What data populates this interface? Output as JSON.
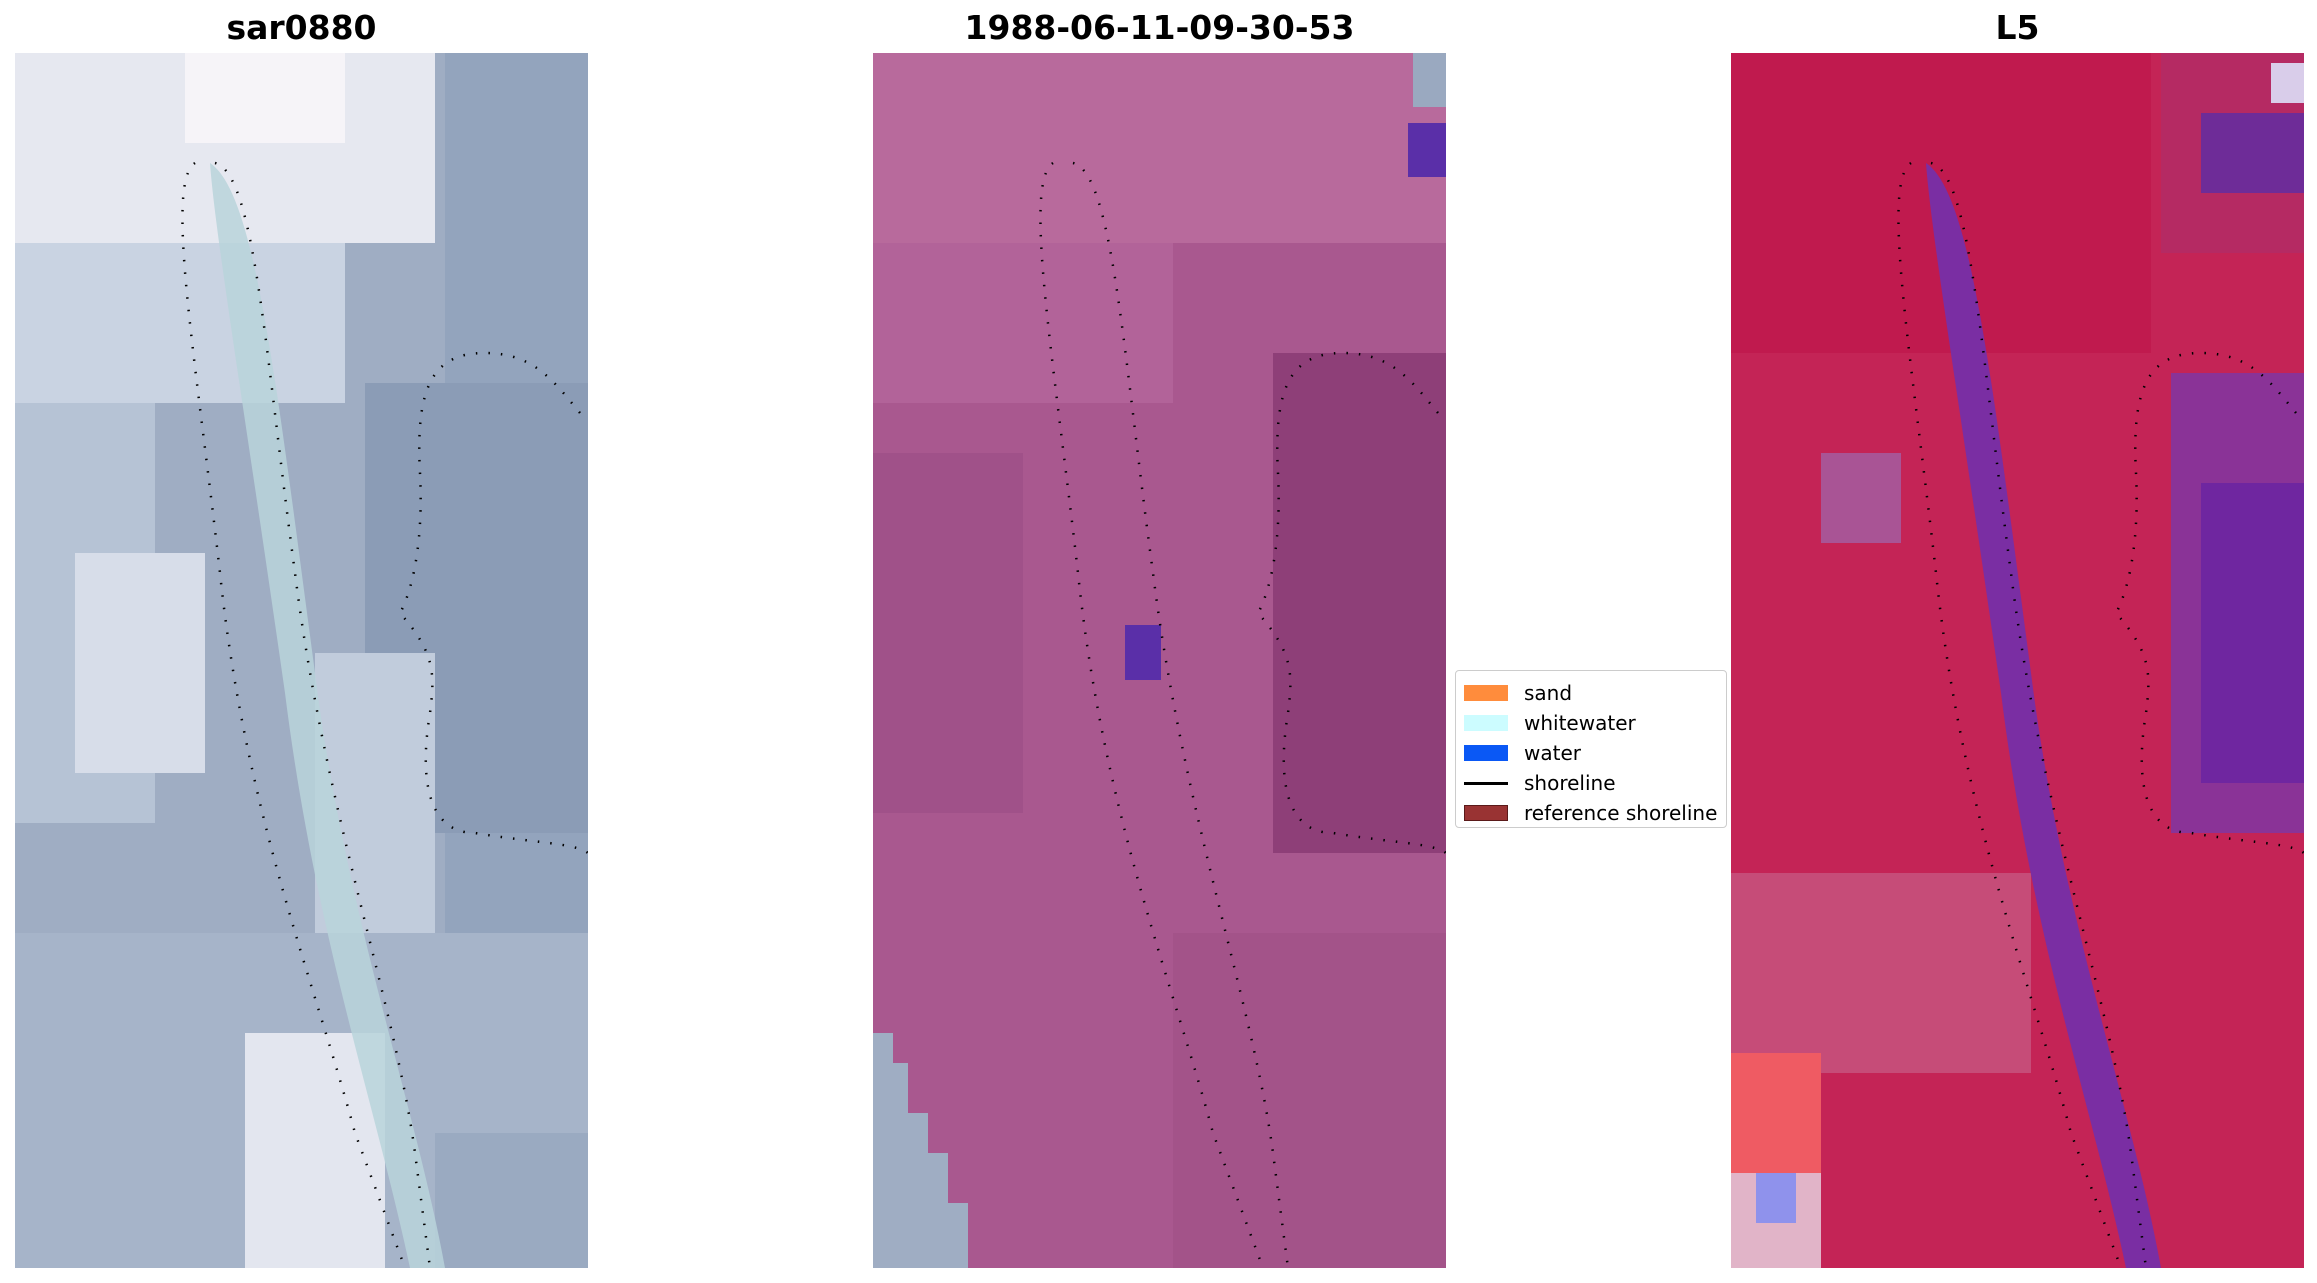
{
  "panels": [
    {
      "title": "sar0880"
    },
    {
      "title": "1988-06-11-09-30-53"
    },
    {
      "title": "L5"
    }
  ],
  "legend": {
    "items": [
      {
        "label": "sand",
        "color": "#ff8c3c"
      },
      {
        "label": "whitewater",
        "color": "#ccfcff"
      },
      {
        "label": "water",
        "color": "#0a58f5"
      },
      {
        "label": "shoreline",
        "color": "#000000"
      },
      {
        "label": "reference shoreline",
        "color": "#993333"
      }
    ]
  },
  "colors": {
    "rgb_base": "#9aa9c0",
    "rgb_light": "#dfe3ee",
    "class_overlay": "#a9538f",
    "index_red": "#c8174f",
    "index_purple": "#7b2fa0"
  }
}
